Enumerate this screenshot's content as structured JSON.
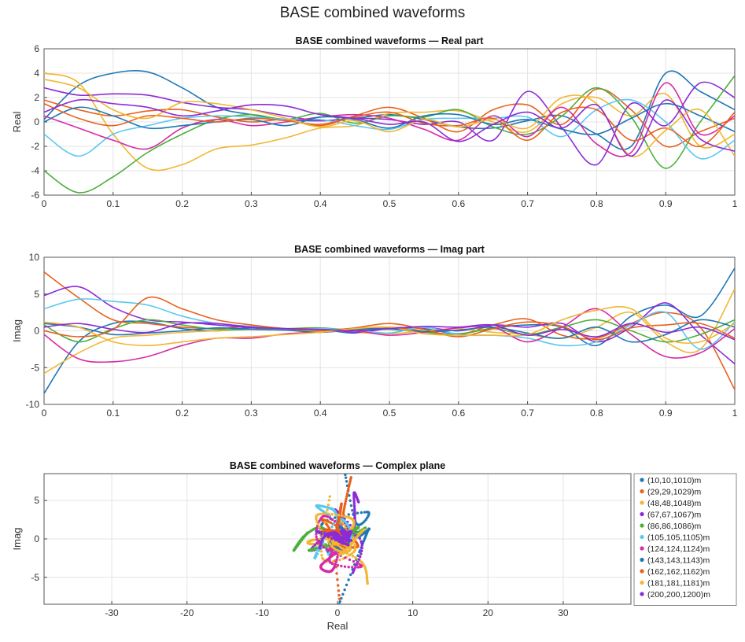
{
  "figure": {
    "suptitle": "BASE combined waveforms"
  },
  "palette": [
    "#1f77b4",
    "#e8601c",
    "#f2b632",
    "#8c2bd6",
    "#4caf3a",
    "#5bc8ef",
    "#d62ba8",
    "#1f77b4",
    "#e8601c",
    "#f2b632",
    "#8c2bd6"
  ],
  "chart_data": [
    {
      "type": "line",
      "title": "BASE combined waveforms — Real part",
      "xlabel": "",
      "ylabel": "Real",
      "xlim": [
        0,
        1
      ],
      "ylim": [
        -6,
        6
      ],
      "xticks": [
        "0",
        "0.1",
        "0.2",
        "0.3",
        "0.4",
        "0.5",
        "0.6",
        "0.7",
        "0.8",
        "0.9",
        "1"
      ],
      "yticks": [
        "-6",
        "-4",
        "-2",
        "0",
        "2",
        "4",
        "6"
      ],
      "grid": true,
      "x": [
        0,
        0.05,
        0.1,
        0.15,
        0.2,
        0.25,
        0.3,
        0.35,
        0.4,
        0.45,
        0.5,
        0.55,
        0.6,
        0.65,
        0.7,
        0.75,
        0.8,
        0.85,
        0.9,
        0.95,
        1
      ],
      "series": [
        {
          "values": [
            0.2,
            3.0,
            4.0,
            4.1,
            2.8,
            1.2,
            0.6,
            0.2,
            0.1,
            0.3,
            0.6,
            0.2,
            -0.4,
            -0.5,
            0.1,
            0.5,
            -1.0,
            -2.0,
            4.0,
            2.5,
            1.0
          ]
        },
        {
          "values": [
            1.8,
            1.0,
            0.5,
            0.9,
            1.0,
            0.4,
            0.0,
            0.2,
            -0.3,
            0.5,
            1.2,
            0.3,
            -0.8,
            1.0,
            1.4,
            -0.2,
            2.7,
            1.0,
            -2.0,
            -0.8,
            0.3
          ]
        },
        {
          "values": [
            4.0,
            3.2,
            -1.0,
            -3.8,
            -3.5,
            -2.2,
            -1.9,
            -1.3,
            -0.5,
            -0.3,
            0.7,
            0.8,
            0.9,
            0.0,
            -0.8,
            1.5,
            2.0,
            0.5,
            2.3,
            -2.0,
            -1.0
          ]
        },
        {
          "values": [
            2.8,
            2.2,
            2.3,
            2.2,
            1.6,
            1.2,
            1.0,
            0.5,
            0.1,
            0.3,
            0.2,
            -0.2,
            0.0,
            -1.5,
            2.5,
            -0.5,
            -3.5,
            1.5,
            -0.3,
            3.2,
            2.0
          ]
        },
        {
          "values": [
            -4.0,
            -5.8,
            -4.5,
            -2.5,
            -1.0,
            0.2,
            0.6,
            0.2,
            0.7,
            -0.1,
            0.5,
            0.4,
            1.0,
            -0.4,
            -1.0,
            0.5,
            2.8,
            0.4,
            -3.8,
            0.0,
            3.8
          ]
        },
        {
          "values": [
            -1.0,
            -2.8,
            -1.0,
            -0.3,
            0.3,
            0.5,
            0.4,
            0.2,
            0.2,
            -0.3,
            -0.6,
            0.2,
            0.3,
            0.3,
            0.4,
            -1.2,
            1.0,
            1.8,
            0.0,
            -3.0,
            -1.5
          ]
        },
        {
          "values": [
            0.5,
            -0.5,
            -1.5,
            -2.2,
            -0.5,
            0.2,
            -0.3,
            0.0,
            0.4,
            0.6,
            0.3,
            -0.6,
            -1.5,
            0.5,
            -1.2,
            1.2,
            -1.8,
            -2.5,
            3.2,
            -1.0,
            0.5
          ]
        },
        {
          "values": [
            0.0,
            1.2,
            0.5,
            -0.5,
            -0.3,
            0.0,
            0.2,
            -0.3,
            0.4,
            0.2,
            -0.5,
            0.5,
            0.6,
            -0.2,
            0.2,
            -0.6,
            -1.0,
            0.3,
            1.5,
            0.5,
            -0.8
          ]
        },
        {
          "values": [
            1.5,
            0.3,
            -0.3,
            0.5,
            0.3,
            0.0,
            0.3,
            0.1,
            -0.2,
            0.4,
            0.8,
            -0.1,
            -0.3,
            0.3,
            -1.5,
            0.8,
            1.0,
            -1.5,
            -0.5,
            -2.0,
            0.8
          ]
        },
        {
          "values": [
            3.5,
            2.8,
            1.0,
            0.3,
            1.6,
            1.5,
            1.0,
            0.3,
            -0.4,
            0.1,
            -0.8,
            0.2,
            -0.4,
            0.2,
            -0.5,
            2.0,
            1.5,
            -2.8,
            -0.7,
            1.0,
            -2.8
          ]
        },
        {
          "values": [
            0.8,
            1.8,
            1.5,
            1.2,
            0.5,
            0.9,
            1.4,
            1.3,
            0.6,
            0.3,
            -0.2,
            0.0,
            -1.6,
            -0.2,
            0.8,
            -0.5,
            1.4,
            -2.8,
            1.8,
            -1.4,
            -2.4
          ]
        }
      ]
    },
    {
      "type": "line",
      "title": "BASE combined waveforms — Imag part",
      "xlabel": "",
      "ylabel": "Imag",
      "xlim": [
        0,
        1
      ],
      "ylim": [
        -10,
        10
      ],
      "xticks": [
        "0",
        "0.1",
        "0.2",
        "0.3",
        "0.4",
        "0.5",
        "0.6",
        "0.7",
        "0.8",
        "0.9",
        "1"
      ],
      "yticks": [
        "-10",
        "-5",
        "0",
        "5",
        "10"
      ],
      "grid": true,
      "x": [
        0,
        0.05,
        0.1,
        0.15,
        0.2,
        0.25,
        0.3,
        0.35,
        0.4,
        0.45,
        0.5,
        0.55,
        0.6,
        0.65,
        0.7,
        0.75,
        0.8,
        0.85,
        0.9,
        0.95,
        1
      ],
      "series": [
        {
          "values": [
            -8.5,
            -1.5,
            1.0,
            1.2,
            0.3,
            0.0,
            0.4,
            0.2,
            0.2,
            -0.3,
            0.4,
            0.3,
            -0.4,
            0.4,
            0.8,
            0.5,
            -2.0,
            2.0,
            3.5,
            2.0,
            8.5
          ]
        },
        {
          "values": [
            8.0,
            4.5,
            1.5,
            1.0,
            0.5,
            0.3,
            0.6,
            0.2,
            0.1,
            0.3,
            0.5,
            0.0,
            -0.5,
            0.8,
            1.6,
            -0.6,
            -1.0,
            1.0,
            2.5,
            0.5,
            -8.0
          ]
        },
        {
          "values": [
            -5.8,
            -3.0,
            -1.0,
            -0.6,
            -0.2,
            0.0,
            0.2,
            0.1,
            0.2,
            -0.2,
            -0.4,
            0.0,
            0.3,
            -0.2,
            -0.5,
            -1.0,
            0.5,
            2.5,
            -1.5,
            -2.5,
            5.7
          ]
        },
        {
          "values": [
            4.8,
            6.0,
            3.2,
            1.5,
            1.2,
            0.8,
            0.4,
            0.2,
            0.3,
            -0.2,
            0.3,
            0.5,
            0.0,
            0.8,
            0.5,
            1.0,
            -1.5,
            0.5,
            3.8,
            -0.5,
            -4.5
          ]
        },
        {
          "values": [
            0.8,
            -1.5,
            0.3,
            1.5,
            0.8,
            0.2,
            0.2,
            0.3,
            0.4,
            0.1,
            0.2,
            -0.2,
            -0.5,
            0.3,
            -0.5,
            0.5,
            1.5,
            0.0,
            -1.5,
            -0.5,
            1.5
          ]
        },
        {
          "values": [
            3.0,
            4.3,
            4.0,
            3.5,
            2.0,
            1.0,
            0.6,
            0.2,
            0.3,
            0.1,
            -0.3,
            0.5,
            -0.5,
            -0.6,
            -1.0,
            -2.0,
            -1.5,
            0.8,
            2.5,
            -2.5,
            1.2
          ]
        },
        {
          "values": [
            -0.5,
            -3.8,
            -4.2,
            -3.5,
            -2.0,
            -1.0,
            -1.0,
            -0.4,
            -0.2,
            0.0,
            -0.6,
            -0.2,
            0.4,
            0.5,
            -1.5,
            0.5,
            3.0,
            -0.5,
            -3.5,
            -3.0,
            0.3
          ]
        },
        {
          "values": [
            1.0,
            0.5,
            -0.5,
            -0.3,
            0.0,
            0.4,
            0.2,
            0.1,
            -0.2,
            0.2,
            0.3,
            -0.1,
            0.1,
            0.5,
            -0.3,
            -1.0,
            0.5,
            -1.5,
            -0.5,
            1.5,
            0.5
          ]
        },
        {
          "values": [
            0.0,
            -0.8,
            0.2,
            4.5,
            3.0,
            1.5,
            0.8,
            0.3,
            0.0,
            0.4,
            1.0,
            0.2,
            -0.8,
            0.3,
            1.2,
            0.6,
            -1.2,
            0.4,
            0.8,
            1.0,
            -1.0
          ]
        },
        {
          "values": [
            1.2,
            0.5,
            -1.5,
            -2.0,
            -1.5,
            -1.0,
            -0.8,
            -0.5,
            -0.2,
            0.3,
            0.5,
            -0.4,
            -0.6,
            -0.6,
            -0.5,
            1.5,
            2.8,
            3.0,
            -1.0,
            -1.5,
            1.0
          ]
        },
        {
          "values": [
            0.5,
            1.0,
            0.2,
            -0.2,
            1.0,
            1.0,
            0.5,
            0.3,
            0.2,
            0.0,
            0.3,
            0.6,
            0.5,
            0.8,
            -0.6,
            0.2,
            -0.8,
            1.0,
            -0.2,
            0.5,
            -1.2
          ]
        }
      ]
    },
    {
      "type": "scatter",
      "title": "BASE combined waveforms — Complex plane",
      "xlabel": "Real",
      "ylabel": "Imag",
      "xlim": [
        -39,
        39
      ],
      "ylim": [
        -8.5,
        8.5
      ],
      "xticks": [
        "-30",
        "-20",
        "-10",
        "0",
        "10",
        "20",
        "30"
      ],
      "yticks": [
        "-5",
        "0",
        "5"
      ],
      "grid": true,
      "legend_position": "right",
      "legend": [
        "(10,10,1010)m",
        "(29,29,1029)m",
        "(48,48,1048)m",
        "(67,67,1067)m",
        "(86,86,1086)m",
        "(105,105,1105)m",
        "(124,124,1124)m",
        "(143,143,1143)m",
        "(162,162,1162)m",
        "(181,181,1181)m",
        "(200,200,1200)m"
      ]
    }
  ]
}
